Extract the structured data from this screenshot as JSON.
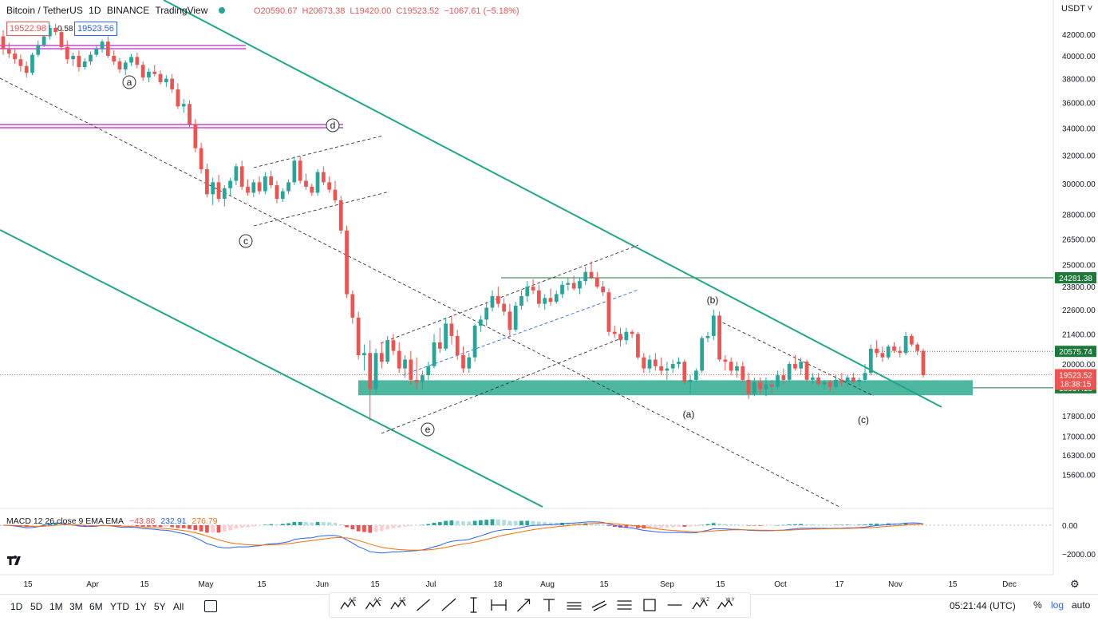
{
  "header": {
    "symbol": "Bitcoin / TetherUS",
    "interval": "1D",
    "exchange": "BINANCE",
    "source": "TradingView",
    "open": "O20590.67",
    "high": "H20673.38",
    "low": "L19420.00",
    "close": "C19523.52",
    "change": "−1067.61 (−5.18%)",
    "bid": "19522.98",
    "spread": "0.58",
    "ask": "19523.56"
  },
  "currency_label": "USDT",
  "macd": {
    "label": "MACD 12 26 close 9 EMA EMA",
    "hist": "−43.88",
    "macd": "232.91",
    "signal": "276.79",
    "axis_ticks": [
      "0.00",
      "−2000.00"
    ]
  },
  "timeframes": [
    "1D",
    "5D",
    "1M",
    "3M",
    "6M",
    "YTD",
    "1Y",
    "5Y",
    "All"
  ],
  "toolbar_icons": [
    "elliott-wave-abcde-icon",
    "elliott-wave-abc-icon",
    "elliott-wave-15-icon",
    "trend-line-icon",
    "ray-icon",
    "vertical-line-icon",
    "date-range-icon",
    "arrow-icon",
    "text-icon",
    "long-position-icon",
    "parallel-channel-icon",
    "pitchfork-icon",
    "rectangle-icon",
    "horizontal-line-icon",
    "elliott-wxy-icon",
    "elliott-wxyxz-icon"
  ],
  "toolbar_labels": {
    "abcde": "A E",
    "abc": "A C",
    "impulse": "1 5",
    "wxy": "W Z",
    "wxyxz": "W Y"
  },
  "clock": "05:21:44 (UTC)",
  "scale_buttons": {
    "percent": "%",
    "log": "log",
    "auto": "auto"
  },
  "colors": {
    "up": "#26a69a",
    "down": "#ef5350",
    "channel": "#1fa68c",
    "magenta": "#c224c7",
    "support_zone": "#2eaa8f",
    "blue": "#2962ff"
  },
  "chart_data": {
    "type": "candlestick",
    "title": "Bitcoin / TetherUS, 1D, BINANCE",
    "y_axis": {
      "scale": "log",
      "ticks": [
        42000,
        40000,
        38000,
        36000,
        34000,
        32000,
        30000,
        28000,
        26500,
        25000,
        23800,
        22600,
        21400,
        20000,
        19000,
        17800,
        17000,
        16300,
        15600
      ],
      "tick_labels": [
        "42000.00",
        "40000.00",
        "38000.00",
        "36000.00",
        "34000.00",
        "32000.00",
        "30000.00",
        "28000.00",
        "26500.00",
        "25000.00",
        "23800.00",
        "22600.00",
        "21400.00",
        "20000.00",
        "19000.00",
        "17800.00",
        "17000.00",
        "16300.00",
        "15600.00"
      ]
    },
    "x_axis": {
      "tick_labels": [
        "15",
        "Apr",
        "15",
        "May",
        "15",
        "Jun",
        "15",
        "Jul",
        "18",
        "Aug",
        "15",
        "Sep",
        "15",
        "Oct",
        "17",
        "Nov",
        "15",
        "Dec"
      ]
    },
    "price_labels": [
      {
        "value": "24281.38",
        "kind": "line"
      },
      {
        "value": "20575.74",
        "kind": "line"
      },
      {
        "value": "19523.52",
        "kind": "last",
        "countdown": "18:38:15"
      },
      {
        "value": "18957.18",
        "kind": "zone"
      }
    ],
    "wave_labels": [
      "a",
      "d",
      "c",
      "e",
      "(b)",
      "(a)",
      "(c)"
    ],
    "candles_close": [
      [
        41800,
        42400,
        40100,
        40600
      ],
      [
        40600,
        41200,
        39800,
        40200
      ],
      [
        40200,
        40700,
        39300,
        39700
      ],
      [
        39700,
        40100,
        38600,
        39100
      ],
      [
        39100,
        39500,
        38100,
        38500
      ],
      [
        38500,
        40300,
        38300,
        40100
      ],
      [
        40100,
        41400,
        39900,
        41000
      ],
      [
        41000,
        42200,
        40800,
        41800
      ],
      [
        41800,
        42900,
        41500,
        42600
      ],
      [
        42600,
        43000,
        41900,
        42200
      ],
      [
        42200,
        42600,
        40500,
        40800
      ],
      [
        40800,
        41400,
        39300,
        39700
      ],
      [
        39700,
        40300,
        39100,
        40000
      ],
      [
        40000,
        40500,
        38600,
        39000
      ],
      [
        39000,
        39800,
        38800,
        39500
      ],
      [
        39500,
        40400,
        39200,
        40100
      ],
      [
        40100,
        40900,
        39900,
        40600
      ],
      [
        40600,
        41500,
        40300,
        41300
      ],
      [
        41300,
        41800,
        39800,
        40000
      ],
      [
        40000,
        40500,
        39200,
        39500
      ],
      [
        39500,
        39800,
        38500,
        38800
      ],
      [
        38800,
        39600,
        38300,
        39400
      ],
      [
        39400,
        40200,
        39100,
        39900
      ],
      [
        39900,
        40300,
        38900,
        39200
      ],
      [
        39200,
        39500,
        37800,
        38100
      ],
      [
        38100,
        38900,
        37700,
        38600
      ],
      [
        38600,
        39200,
        38200,
        38400
      ],
      [
        38400,
        38700,
        37500,
        37700
      ],
      [
        37700,
        38300,
        37300,
        38000
      ],
      [
        38000,
        38400,
        36800,
        37100
      ],
      [
        37100,
        37600,
        35500,
        35700
      ],
      [
        35700,
        36300,
        35200,
        35900
      ],
      [
        35900,
        36200,
        34100,
        34300
      ],
      [
        34300,
        34700,
        32200,
        32500
      ],
      [
        32500,
        32900,
        30700,
        31000
      ],
      [
        31000,
        31400,
        29100,
        29300
      ],
      [
        29300,
        30400,
        28600,
        30100
      ],
      [
        30100,
        30600,
        28800,
        29000
      ],
      [
        29000,
        29900,
        28500,
        29700
      ],
      [
        29700,
        30400,
        29200,
        30200
      ],
      [
        30200,
        31400,
        29900,
        31200
      ],
      [
        31200,
        31600,
        29600,
        29800
      ],
      [
        29800,
        30300,
        29200,
        29400
      ],
      [
        29400,
        30300,
        29100,
        30100
      ],
      [
        30100,
        30500,
        29300,
        29500
      ],
      [
        29500,
        30800,
        29300,
        30500
      ],
      [
        30500,
        30900,
        29700,
        29900
      ],
      [
        29900,
        30200,
        28700,
        29000
      ],
      [
        29000,
        29700,
        28800,
        29500
      ],
      [
        29500,
        30300,
        29300,
        30100
      ],
      [
        30100,
        31900,
        29900,
        31600
      ],
      [
        31600,
        31900,
        30000,
        30200
      ],
      [
        30200,
        30700,
        29600,
        29800
      ],
      [
        29800,
        30000,
        29200,
        29400
      ],
      [
        29400,
        31000,
        29200,
        30800
      ],
      [
        30800,
        31200,
        29900,
        30100
      ],
      [
        30100,
        30500,
        29400,
        29600
      ],
      [
        29600,
        30200,
        28700,
        28900
      ],
      [
        28900,
        29200,
        26800,
        27000
      ],
      [
        27000,
        27300,
        23200,
        23400
      ],
      [
        23400,
        23600,
        21900,
        22200
      ],
      [
        22200,
        22500,
        20200,
        20400
      ],
      [
        20400,
        20900,
        19700,
        20500
      ],
      [
        20500,
        21100,
        17600,
        18900
      ],
      [
        18900,
        20700,
        18700,
        20500
      ],
      [
        20500,
        21000,
        19800,
        20100
      ],
      [
        20100,
        21300,
        20000,
        21100
      ],
      [
        21100,
        21400,
        20400,
        20600
      ],
      [
        20600,
        21000,
        19600,
        19800
      ],
      [
        19800,
        20400,
        19400,
        20200
      ],
      [
        20200,
        20600,
        19100,
        19300
      ],
      [
        19300,
        20300,
        18900,
        19200
      ],
      [
        19200,
        19700,
        18900,
        19500
      ],
      [
        19500,
        20100,
        19300,
        19900
      ],
      [
        19900,
        21400,
        19800,
        21000
      ],
      [
        21000,
        21700,
        20500,
        20700
      ],
      [
        20700,
        22200,
        20600,
        21900
      ],
      [
        21900,
        22300,
        20900,
        21300
      ],
      [
        21300,
        21600,
        20200,
        20400
      ],
      [
        20400,
        20800,
        19600,
        19800
      ],
      [
        19800,
        20500,
        19600,
        20300
      ],
      [
        20300,
        21900,
        20100,
        21800
      ],
      [
        21800,
        22300,
        21500,
        22100
      ],
      [
        22100,
        23000,
        21800,
        22700
      ],
      [
        22700,
        23600,
        22500,
        23300
      ],
      [
        23300,
        23800,
        22700,
        22900
      ],
      [
        22900,
        23200,
        22300,
        22500
      ],
      [
        22500,
        22900,
        21300,
        21600
      ],
      [
        21600,
        23000,
        21500,
        22800
      ],
      [
        22800,
        23600,
        22600,
        23300
      ],
      [
        23300,
        24100,
        23000,
        23800
      ],
      [
        23800,
        24200,
        23400,
        23600
      ],
      [
        23600,
        23900,
        22700,
        22900
      ],
      [
        22900,
        23400,
        22600,
        23200
      ],
      [
        23200,
        23700,
        22800,
        23000
      ],
      [
        23000,
        23600,
        22900,
        23400
      ],
      [
        23400,
        24100,
        23200,
        23900
      ],
      [
        23900,
        24300,
        23600,
        24000
      ],
      [
        24000,
        24400,
        23600,
        23700
      ],
      [
        23700,
        24300,
        23400,
        24100
      ],
      [
        24100,
        24900,
        23900,
        24600
      ],
      [
        24600,
        25200,
        24200,
        24300
      ],
      [
        24300,
        24600,
        23700,
        23800
      ],
      [
        23800,
        24100,
        23300,
        23500
      ],
      [
        23500,
        23700,
        21300,
        21500
      ],
      [
        21500,
        21800,
        21200,
        21400
      ],
      [
        21400,
        21700,
        20800,
        21100
      ],
      [
        21100,
        21700,
        20900,
        21500
      ],
      [
        21500,
        21600,
        21200,
        21400
      ],
      [
        21400,
        21500,
        20200,
        20300
      ],
      [
        20300,
        20500,
        19600,
        19800
      ],
      [
        19800,
        20400,
        19600,
        20200
      ],
      [
        20200,
        20500,
        19700,
        19900
      ],
      [
        19900,
        20300,
        19500,
        19700
      ],
      [
        19700,
        20100,
        19300,
        19800
      ],
      [
        19800,
        20200,
        19600,
        20000
      ],
      [
        20000,
        20300,
        19800,
        20100
      ],
      [
        20100,
        20200,
        19100,
        19200
      ],
      [
        19200,
        19500,
        18700,
        19300
      ],
      [
        19300,
        19800,
        19200,
        19700
      ],
      [
        19700,
        21300,
        19600,
        21200
      ],
      [
        21200,
        21500,
        21000,
        21300
      ],
      [
        21300,
        22600,
        21100,
        22300
      ],
      [
        22300,
        22500,
        20100,
        20200
      ],
      [
        20200,
        20400,
        19700,
        20100
      ],
      [
        20100,
        20300,
        19500,
        19700
      ],
      [
        19700,
        20100,
        19400,
        19900
      ],
      [
        19900,
        20100,
        19200,
        19300
      ],
      [
        19300,
        19600,
        18500,
        18700
      ],
      [
        18700,
        19400,
        18600,
        19200
      ],
      [
        19200,
        19400,
        18700,
        18900
      ],
      [
        18900,
        19400,
        18600,
        19100
      ],
      [
        19100,
        19300,
        18700,
        19000
      ],
      [
        19000,
        19700,
        18900,
        19500
      ],
      [
        19500,
        19800,
        19100,
        19300
      ],
      [
        19300,
        20100,
        19200,
        20000
      ],
      [
        20000,
        20400,
        19700,
        19800
      ],
      [
        19800,
        20300,
        19500,
        20100
      ],
      [
        20100,
        20200,
        19200,
        19300
      ],
      [
        19300,
        19600,
        19100,
        19400
      ],
      [
        19400,
        19600,
        19000,
        19100
      ],
      [
        19100,
        19300,
        18900,
        19200
      ],
      [
        19200,
        19300,
        18800,
        19000
      ],
      [
        19000,
        19500,
        18900,
        19300
      ],
      [
        19300,
        19600,
        19000,
        19200
      ],
      [
        19200,
        19500,
        19000,
        19400
      ],
      [
        19400,
        19600,
        19100,
        19200
      ],
      [
        19200,
        19400,
        19000,
        19300
      ],
      [
        19300,
        20000,
        19200,
        19600
      ],
      [
        19600,
        20900,
        19500,
        20700
      ],
      [
        20700,
        21100,
        20300,
        20500
      ],
      [
        20500,
        20800,
        20100,
        20300
      ],
      [
        20300,
        20900,
        20200,
        20800
      ],
      [
        20800,
        21000,
        20500,
        20600
      ],
      [
        20600,
        20800,
        20300,
        20500
      ],
      [
        20500,
        21500,
        20400,
        21300
      ],
      [
        21300,
        21400,
        20800,
        20900
      ],
      [
        20900,
        21000,
        20400,
        20600
      ],
      [
        20600,
        20700,
        19400,
        19500
      ]
    ]
  }
}
